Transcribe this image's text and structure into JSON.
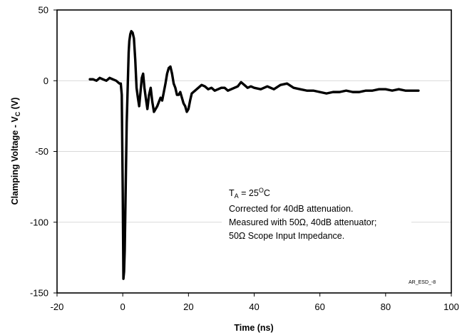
{
  "chart_data": {
    "type": "line",
    "title": "",
    "xlabel": "Time (ns)",
    "ylabel_main": "Clamping Voltage - V",
    "ylabel_sub": "C",
    "ylabel_unit": " (V)",
    "xlim": [
      -20,
      100
    ],
    "ylim": [
      -150,
      50
    ],
    "xticks": [
      -20,
      0,
      20,
      40,
      60,
      80,
      100
    ],
    "yticks": [
      -150,
      -100,
      -50,
      0,
      50
    ],
    "grid": "horizontal-major",
    "series": [
      {
        "name": "",
        "x": [
          -10,
          -9,
          -8,
          -7,
          -6,
          -5,
          -4,
          -3,
          -2,
          -1.5,
          -1,
          -0.6,
          -0.3,
          0,
          0.2,
          0.4,
          0.6,
          0.8,
          1,
          1.2,
          1.5,
          1.8,
          2,
          2.3,
          2.6,
          3,
          3.4,
          3.8,
          4.2,
          4.6,
          5,
          5.4,
          5.8,
          6.2,
          6.6,
          7,
          7.5,
          8,
          8.5,
          9,
          9.5,
          10,
          10.5,
          11,
          11.5,
          12,
          12.5,
          13,
          13.5,
          14,
          14.5,
          15,
          15.5,
          16,
          16.5,
          17,
          17.5,
          18,
          18.5,
          19,
          19.5,
          20,
          20.5,
          21,
          22,
          23,
          24,
          25,
          26,
          27,
          28,
          29,
          30,
          31,
          32,
          33,
          34,
          35,
          36,
          37,
          38,
          39,
          40,
          42,
          44,
          46,
          48,
          50,
          52,
          54,
          56,
          58,
          60,
          62,
          64,
          66,
          68,
          70,
          72,
          74,
          76,
          78,
          80,
          82,
          84,
          86,
          88,
          90
        ],
        "y": [
          1,
          1,
          0,
          2,
          1,
          0,
          2,
          1,
          0,
          -1,
          -2,
          -2,
          -10,
          -80,
          -140,
          -135,
          -120,
          -90,
          -60,
          -30,
          -5,
          20,
          28,
          33,
          35,
          34,
          30,
          15,
          -5,
          -12,
          -18,
          -8,
          2,
          5,
          -5,
          -12,
          -20,
          -10,
          -5,
          -15,
          -22,
          -20,
          -18,
          -15,
          -12,
          -14,
          -8,
          -2,
          5,
          9,
          10,
          5,
          -2,
          -5,
          -10,
          -10,
          -8,
          -12,
          -16,
          -18,
          -22,
          -20,
          -14,
          -9,
          -7,
          -5,
          -3,
          -4,
          -6,
          -5,
          -7,
          -6,
          -5,
          -5,
          -7,
          -6,
          -5,
          -4,
          -1,
          -3,
          -5,
          -4,
          -5,
          -6,
          -4,
          -6,
          -3,
          -2,
          -5,
          -6,
          -7,
          -7,
          -8,
          -9,
          -8,
          -8,
          -7,
          -8,
          -8,
          -7,
          -7,
          -6,
          -6,
          -7,
          -6,
          -7,
          -7,
          -7
        ]
      }
    ],
    "annotations": [
      {
        "main": "T",
        "sub": "A",
        "rest_a": " = 25",
        "sup": "O",
        "rest_b": "C"
      },
      {
        "text": "Corrected for 40dB attenuation."
      },
      {
        "text": "Measured with 50Ω, 40dB attenuator;"
      },
      {
        "text": "50Ω Scope Input Impedance."
      }
    ],
    "reference_code": "AR_ESD_-8",
    "colors": {
      "line": "#000000",
      "grid": "#d9d9d9",
      "border": "#000000",
      "annotation_box": "#ffffff"
    }
  }
}
